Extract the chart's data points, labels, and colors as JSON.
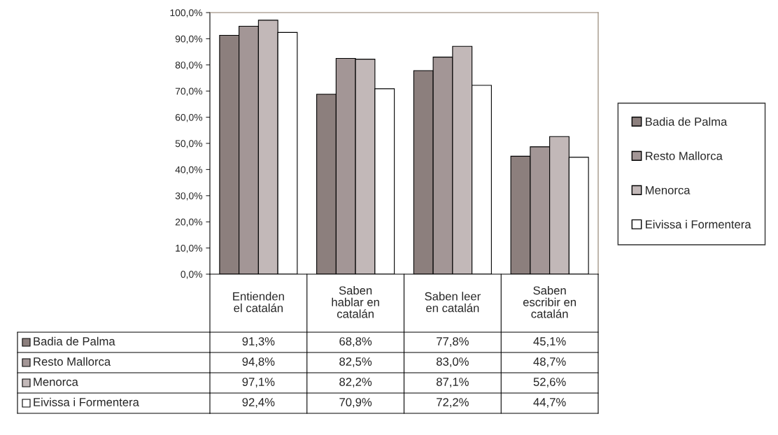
{
  "chart_data": {
    "type": "bar",
    "categories": [
      "Entienden\nel catalán",
      "Saben\nhablar en\ncatalán",
      "Saben leer\nen catalán",
      "Saben\nescribir en\ncatalán"
    ],
    "series": [
      {
        "name": "Badia de Palma",
        "color": "#8c7f7d",
        "values": [
          91.3,
          68.8,
          77.8,
          45.1
        ],
        "value_labels": [
          "91,3%",
          "68,8%",
          "77,8%",
          "45,1%"
        ]
      },
      {
        "name": "Resto Mallorca",
        "color": "#a39696",
        "values": [
          94.8,
          82.5,
          83.0,
          48.7
        ],
        "value_labels": [
          "94,8%",
          "82,5%",
          "83,0%",
          "48,7%"
        ]
      },
      {
        "name": "Menorca",
        "color": "#c2b8b8",
        "values": [
          97.1,
          82.2,
          87.1,
          52.6
        ],
        "value_labels": [
          "97,1%",
          "82,2%",
          "87,1%",
          "52,6%"
        ]
      },
      {
        "name": "Eivissa i Formentera",
        "color": "#ffffff",
        "values": [
          92.4,
          70.9,
          72.2,
          44.7
        ],
        "value_labels": [
          "92,4%",
          "70,9%",
          "72,2%",
          "44,7%"
        ]
      }
    ],
    "ylim": [
      0,
      100
    ],
    "yticks": [
      {
        "value": 0,
        "label": "0,0%"
      },
      {
        "value": 10,
        "label": "10,0%"
      },
      {
        "value": 20,
        "label": "20,0%"
      },
      {
        "value": 30,
        "label": "30,0%"
      },
      {
        "value": 40,
        "label": "40,0%"
      },
      {
        "value": 50,
        "label": "50,0%"
      },
      {
        "value": 60,
        "label": "60,0%"
      },
      {
        "value": 70,
        "label": "70,0%"
      },
      {
        "value": 80,
        "label": "80,0%"
      },
      {
        "value": 90,
        "label": "90,0%"
      },
      {
        "value": 100,
        "label": "100,0%"
      }
    ],
    "grid": false,
    "legend": "right"
  }
}
